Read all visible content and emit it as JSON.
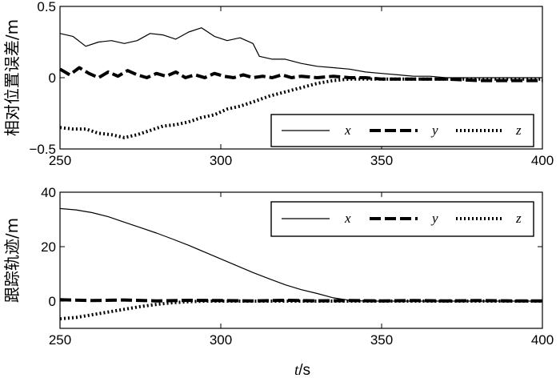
{
  "chart_data": [
    {
      "type": "line",
      "title": "",
      "xlabel": "",
      "ylabel": "相对位置误差/m",
      "xlim": [
        250,
        400
      ],
      "ylim": [
        -0.5,
        0.5
      ],
      "xticks": [
        250,
        300,
        350,
        400
      ],
      "yticks": [
        -0.5,
        0,
        0.5
      ],
      "ytick_labels": [
        "−0.5",
        "0",
        "0.5"
      ],
      "grid": false,
      "legend_position": "bottom-right",
      "series": [
        {
          "name": "x",
          "style": "solid",
          "x": [
            250,
            254,
            258,
            262,
            266,
            270,
            274,
            278,
            282,
            286,
            290,
            294,
            298,
            302,
            306,
            310,
            312,
            316,
            320,
            325,
            330,
            335,
            340,
            345,
            350,
            355,
            360,
            365,
            370,
            380,
            390,
            400
          ],
          "y": [
            0.31,
            0.29,
            0.22,
            0.25,
            0.26,
            0.24,
            0.26,
            0.31,
            0.3,
            0.27,
            0.32,
            0.35,
            0.29,
            0.26,
            0.28,
            0.24,
            0.15,
            0.13,
            0.13,
            0.1,
            0.08,
            0.07,
            0.06,
            0.04,
            0.03,
            0.02,
            0.01,
            0.01,
            0.0,
            0.0,
            0.0,
            0.0
          ]
        },
        {
          "name": "y",
          "style": "dashed",
          "x": [
            250,
            253,
            256,
            259,
            262,
            265,
            268,
            271,
            274,
            277,
            280,
            283,
            286,
            289,
            292,
            295,
            298,
            301,
            304,
            307,
            310,
            313,
            316,
            319,
            322,
            325,
            330,
            335,
            340,
            345,
            350,
            360,
            370,
            380,
            390,
            400
          ],
          "y": [
            0.06,
            0.02,
            0.07,
            0.03,
            0.0,
            0.04,
            0.01,
            0.05,
            0.02,
            0.0,
            0.03,
            0.01,
            0.04,
            0.0,
            0.02,
            0.0,
            0.03,
            0.01,
            0.0,
            0.02,
            0.0,
            0.01,
            0.0,
            0.02,
            0.0,
            0.01,
            0.0,
            0.01,
            0.0,
            0.0,
            -0.01,
            -0.01,
            -0.01,
            -0.02,
            -0.02,
            -0.02
          ]
        },
        {
          "name": "z",
          "style": "dotted",
          "x": [
            250,
            254,
            258,
            262,
            266,
            270,
            274,
            278,
            282,
            286,
            290,
            294,
            298,
            302,
            306,
            310,
            315,
            320,
            325,
            330,
            335,
            340,
            345,
            350,
            355,
            360,
            370,
            380,
            390,
            400
          ],
          "y": [
            -0.35,
            -0.36,
            -0.36,
            -0.39,
            -0.4,
            -0.42,
            -0.4,
            -0.37,
            -0.34,
            -0.33,
            -0.31,
            -0.28,
            -0.26,
            -0.22,
            -0.2,
            -0.17,
            -0.13,
            -0.1,
            -0.07,
            -0.04,
            -0.02,
            -0.01,
            -0.01,
            -0.01,
            -0.01,
            -0.01,
            -0.01,
            -0.01,
            -0.01,
            -0.01
          ]
        }
      ]
    },
    {
      "type": "line",
      "title": "",
      "xlabel": "t/s",
      "xlabel_italic": "t",
      "xlabel_rest": "/s",
      "ylabel": "跟踪轨迹/m",
      "xlim": [
        250,
        400
      ],
      "ylim": [
        -10,
        40
      ],
      "xticks": [
        250,
        300,
        350,
        400
      ],
      "yticks": [
        0,
        20,
        40
      ],
      "ytick_labels": [
        "0",
        "20",
        "40"
      ],
      "grid": false,
      "legend_position": "top-right",
      "series": [
        {
          "name": "x",
          "style": "solid",
          "x": [
            250,
            255,
            260,
            265,
            270,
            275,
            280,
            285,
            290,
            295,
            300,
            305,
            310,
            315,
            320,
            325,
            330,
            335,
            340,
            345,
            350,
            360,
            370,
            380,
            390,
            400
          ],
          "y": [
            34,
            33.5,
            32.5,
            31,
            29,
            27,
            25,
            22.8,
            20.5,
            18,
            15.5,
            13,
            10.5,
            8.2,
            6,
            4.2,
            2.8,
            1.2,
            0.3,
            0,
            0,
            0,
            0,
            0,
            0,
            0
          ]
        },
        {
          "name": "y",
          "style": "dashed",
          "x": [
            250,
            260,
            270,
            280,
            290,
            300,
            310,
            320,
            330,
            340,
            350,
            360,
            370,
            380,
            390,
            400
          ],
          "y": [
            0.5,
            0.2,
            0.4,
            0.1,
            0.3,
            0.2,
            0.1,
            0.3,
            0.1,
            0.2,
            0.1,
            0.2,
            0.1,
            0.2,
            0.1,
            0.1
          ]
        },
        {
          "name": "z",
          "style": "dotted",
          "x": [
            250,
            255,
            260,
            265,
            270,
            275,
            280,
            285,
            290,
            295,
            300,
            310,
            320,
            330,
            340,
            350,
            360,
            370,
            380,
            390,
            400
          ],
          "y": [
            -6.5,
            -6.0,
            -5.0,
            -4.0,
            -3.0,
            -2.0,
            -1.2,
            -0.6,
            -0.2,
            0,
            0,
            0,
            0,
            0,
            0,
            0,
            0,
            0,
            0,
            0,
            0
          ]
        }
      ]
    }
  ]
}
